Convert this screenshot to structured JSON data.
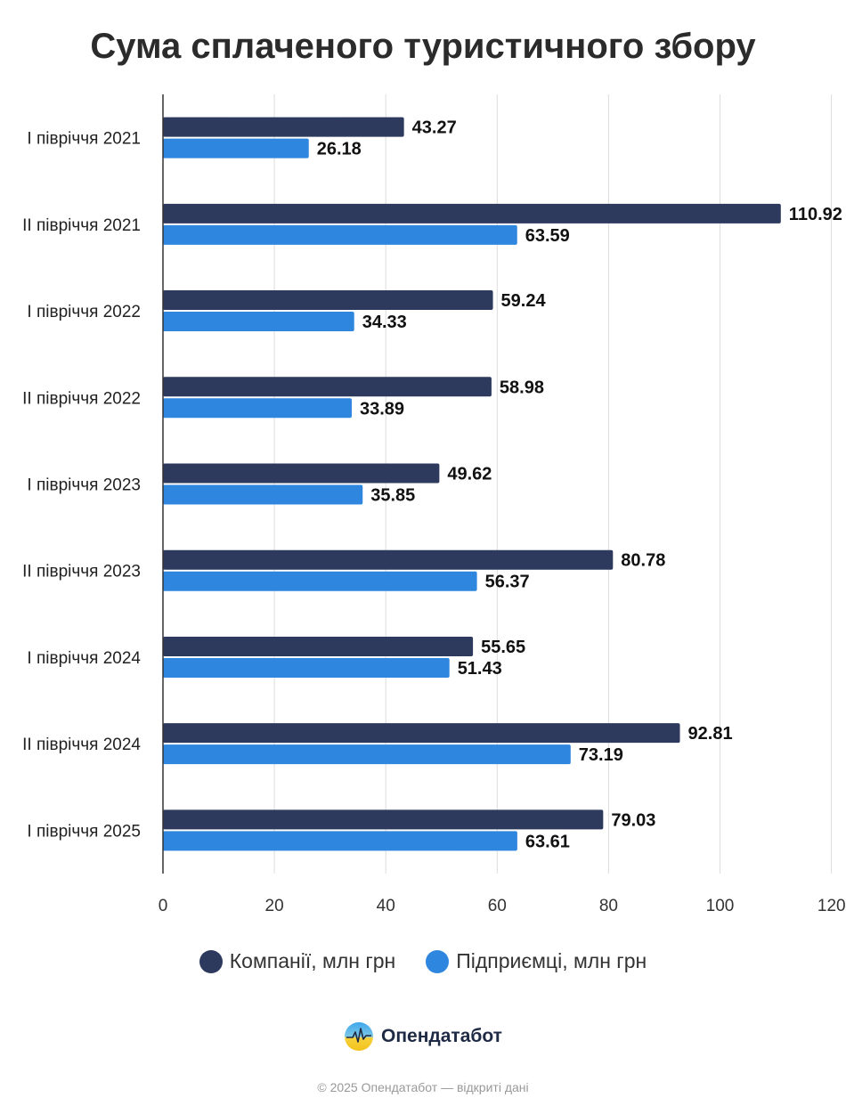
{
  "chart_data": {
    "type": "bar",
    "orientation": "horizontal",
    "title": "Сума сплаченого туристичного збору",
    "categories": [
      "І півріччя 2021",
      "ІІ півріччя 2021",
      "І півріччя 2022",
      "ІІ півріччя 2022",
      "І півріччя 2023",
      "ІІ півріччя 2023",
      "І півріччя 2024",
      "ІІ півріччя 2024",
      "І півріччя 2025"
    ],
    "series": [
      {
        "name": "Компанії, млн грн",
        "color": "#2d3a5e",
        "values": [
          43.27,
          110.92,
          59.24,
          58.98,
          49.62,
          80.78,
          55.65,
          92.81,
          79.03
        ]
      },
      {
        "name": "Підприємці, млн грн",
        "color": "#2f86de",
        "values": [
          26.18,
          63.59,
          34.33,
          33.89,
          35.85,
          56.37,
          51.43,
          73.19,
          63.61
        ]
      }
    ],
    "xlim": [
      0,
      120
    ],
    "xticks": [
      0,
      20,
      40,
      60,
      80,
      100,
      120
    ],
    "grid": true,
    "legend_position": "bottom"
  },
  "brand": {
    "name": "Опендатабот",
    "logo": "opendatabot-logo-icon"
  },
  "footer": "© 2025 Опендатабот — відкриті дані"
}
